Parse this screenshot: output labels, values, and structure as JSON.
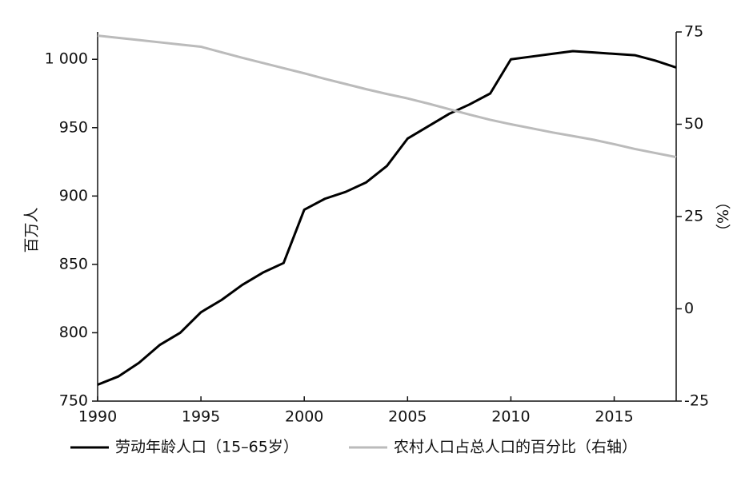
{
  "chart_data": {
    "type": "line",
    "x": [
      1990,
      1991,
      1992,
      1993,
      1994,
      1995,
      1996,
      1997,
      1998,
      1999,
      2000,
      2001,
      2002,
      2003,
      2004,
      2005,
      2006,
      2007,
      2008,
      2009,
      2010,
      2011,
      2012,
      2013,
      2014,
      2015,
      2016,
      2017,
      2018
    ],
    "series": [
      {
        "name": "劳动年龄人口（15–65岁）",
        "color": "#000000",
        "values": [
          762,
          768,
          778,
          791,
          800,
          815,
          824,
          835,
          844,
          851,
          890,
          898,
          903,
          910,
          922,
          942,
          951,
          960,
          967,
          975,
          1000,
          1002,
          1004,
          1006,
          1005,
          1004,
          1003,
          999,
          994
        ]
      },
      {
        "name": "农村人口占总人口的百分比（右轴）",
        "color": "#bbbbbb",
        "axis": "y2",
        "values": [
          74,
          73.4,
          72.8,
          72.2,
          71.6,
          71,
          69.5,
          68,
          66.6,
          65.2,
          63.8,
          62.3,
          60.9,
          59.5,
          58.2,
          57,
          55.6,
          54.1,
          52.6,
          51.2,
          50,
          48.9,
          47.8,
          46.8,
          45.8,
          44.6,
          43.3,
          42.2,
          41.1
        ]
      }
    ],
    "xlim": [
      1990,
      2018
    ],
    "xticks": [
      1990,
      1995,
      2000,
      2005,
      2010,
      2015
    ],
    "ylim": [
      750,
      1020
    ],
    "yticks": [
      750,
      800,
      850,
      900,
      950,
      {
        "value": 1000,
        "label": "1 000"
      }
    ],
    "y2lim": [
      -25,
      75
    ],
    "y2ticks": [
      -25,
      0,
      25,
      50,
      75
    ],
    "ylabel": "百万人",
    "y2label": "（%）"
  }
}
